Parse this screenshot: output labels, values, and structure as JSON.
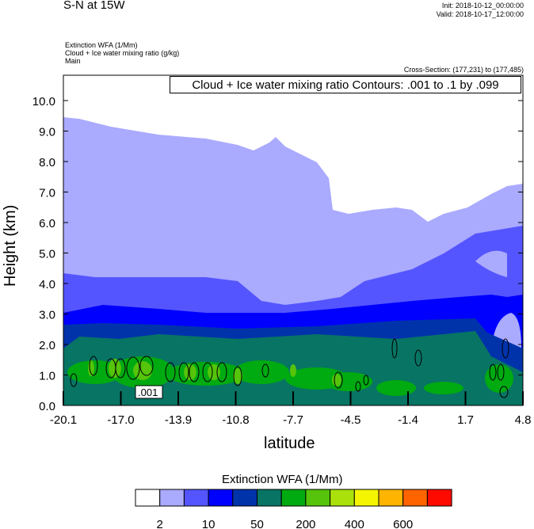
{
  "header": {
    "title": "S-N at 15W",
    "init": "Init: 2018-10-12_00:00:00",
    "valid": "Valid: 2018-10-17_12:00:00",
    "field1": "Extinction WFA   (1/Mm)",
    "field2": "Cloud + Ice water mixing ratio   (g/kg)",
    "field3": "Main",
    "cross_section": "Cross-Section: (177,231) to (177,485)"
  },
  "chart_data": {
    "type": "heatmap",
    "title": "Cloud + Ice water mixing ratio Contours: .001 to .1 by .099",
    "xlabel": "latitude",
    "ylabel": "Height (km)",
    "xlim": [
      -20.1,
      4.8
    ],
    "ylim": [
      0,
      10.9
    ],
    "x_ticks": [
      "-20.1",
      "-17.0",
      "-13.9",
      "-10.8",
      "-7.7",
      "-4.5",
      "-1.4",
      "1.7",
      "4.8"
    ],
    "y_ticks": [
      "0.0",
      "1.0",
      "2.0",
      "3.0",
      "4.0",
      "5.0",
      "6.0",
      "7.0",
      "8.0",
      "9.0",
      "10.0"
    ],
    "contour_label": ".001",
    "colorbar": {
      "title": "Extinction WFA  (1/Mm)",
      "labels": [
        "2",
        "10",
        "50",
        "200",
        "400",
        "600"
      ],
      "colors": [
        "#ffffff",
        "#aaaaff",
        "#5555ff",
        "#0000ff",
        "#0033aa",
        "#087464",
        "#00aa11",
        "#55c40a",
        "#aae10a",
        "#f5f500",
        "#ffb400",
        "#ff6400",
        "#ff0a00"
      ]
    }
  }
}
